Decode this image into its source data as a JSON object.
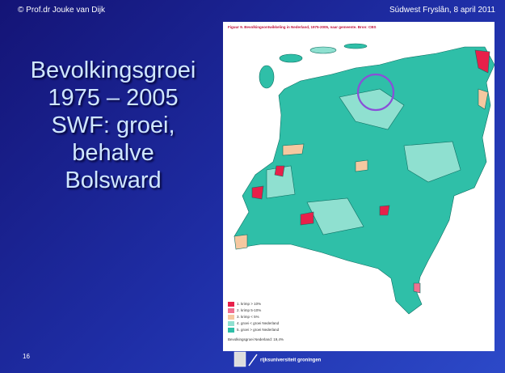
{
  "header": {
    "left": "© Prof.dr Jouke van Dijk",
    "right": "Súdwest Fryslân, 8 april 2011"
  },
  "title": {
    "lines": [
      "Bevolkingsgroei",
      "1975 – 2005",
      "SWF: groei,",
      "behalve",
      "Bolsward"
    ]
  },
  "page_number": "16",
  "figure": {
    "caption": "Figuur 9. Bevolkingsontwikkeling in Nederland, 1975-2005, naar gemeente. Bron: CBS",
    "legend": [
      {
        "label": "1. krimp > 10%",
        "color": "#e8204a"
      },
      {
        "label": "2. krimp 5-10%",
        "color": "#f07090"
      },
      {
        "label": "3. krimp < 5%",
        "color": "#f5c8a0"
      },
      {
        "label": "4. groei < groei Nederland",
        "color": "#8fe0d0"
      },
      {
        "label": "5. groei > groei Nederland",
        "color": "#2fbfa8"
      }
    ],
    "note": "Bevolkingsgroei Nederland: 19,4%"
  },
  "footer": {
    "logo": "rijksuniversiteit groningen"
  }
}
